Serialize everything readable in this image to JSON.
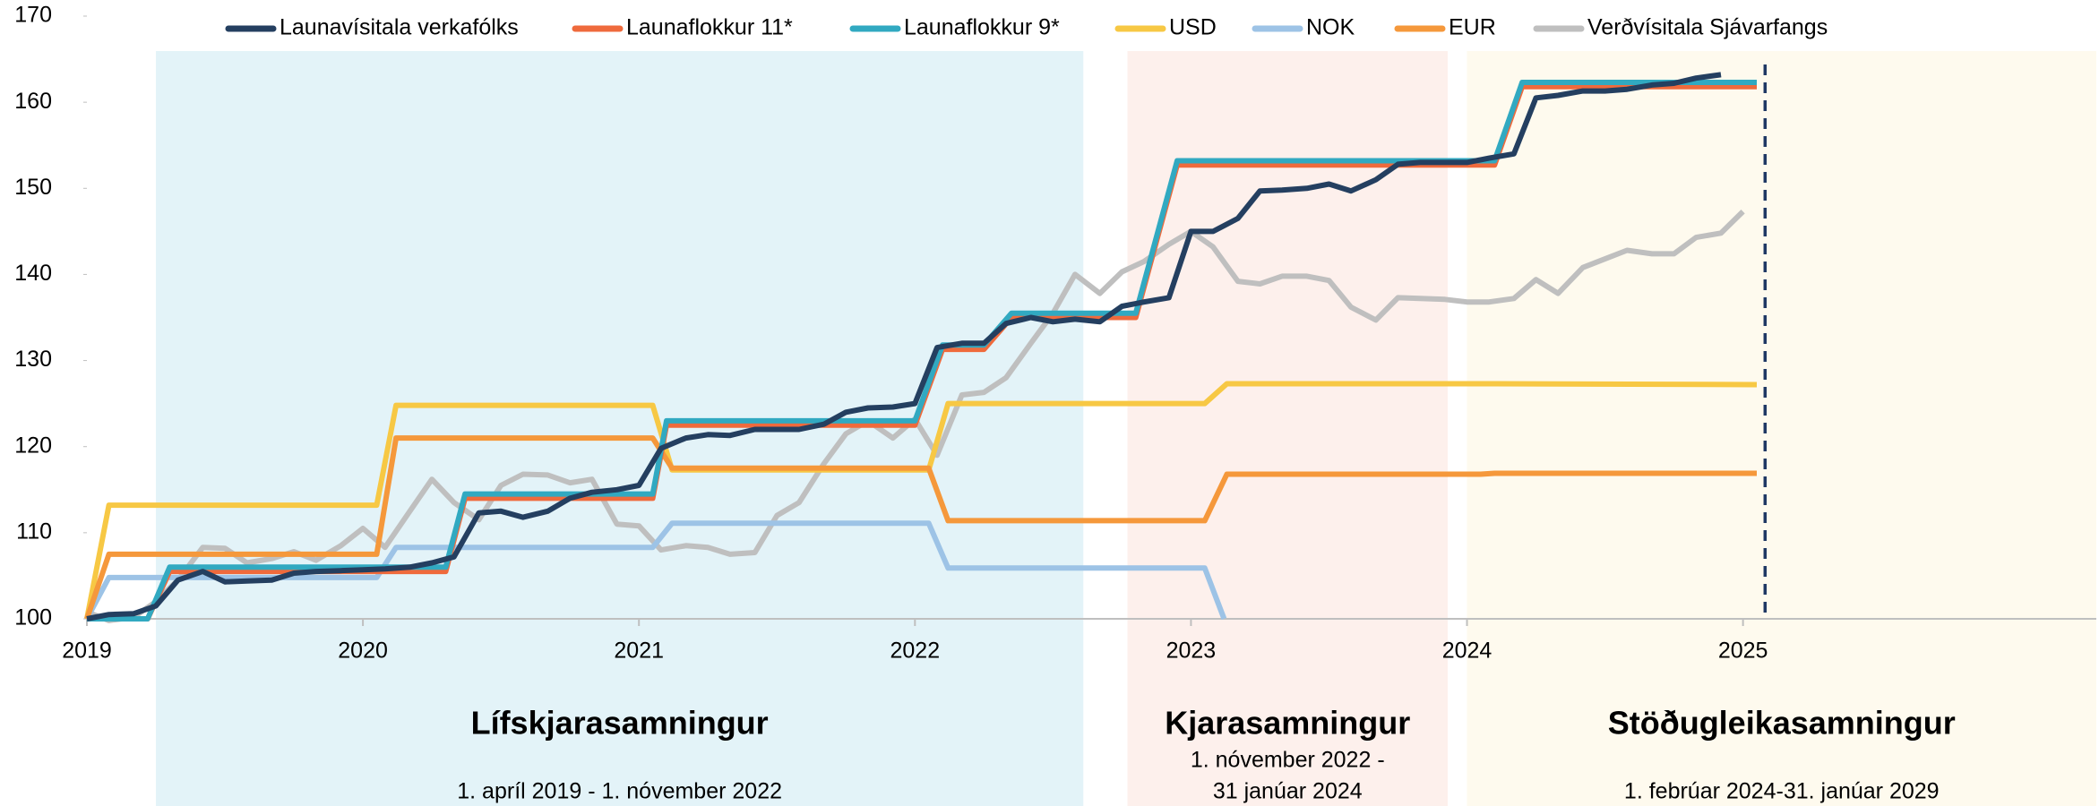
{
  "chart_data": {
    "type": "line",
    "xlim": [
      2019,
      2026.28
    ],
    "ylim": [
      100,
      170
    ],
    "xticks": [
      2019,
      2020,
      2021,
      2022,
      2023,
      2024,
      2025
    ],
    "yticks": [
      100,
      110,
      120,
      130,
      140,
      150,
      160,
      170
    ],
    "marker_line_x": 2025.08,
    "periods": [
      {
        "label": "Lífskjarasamningur",
        "dates": [
          "1. apríl 2019 - 1. nóvember 2022"
        ],
        "start": 2019.25,
        "end": 2022.61,
        "color": "#e3f3f8"
      },
      {
        "label": "Kjarasamningur",
        "dates": [
          "1. nóvember  2022 -",
          "31 janúar 2024"
        ],
        "start": 2022.77,
        "end": 2023.93,
        "color": "#fdf0ec"
      },
      {
        "label": "Stöðugleikasamningur",
        "dates": [
          "1. febrúar 2024-31. janúar 2029"
        ],
        "start": 2024.0,
        "end": 2026.28,
        "color": "#fefaee"
      }
    ],
    "series": [
      {
        "name": "Launavísitala verkafólks",
        "color": "#243f60",
        "x": [
          2019,
          2019.08,
          2019.17,
          2019.25,
          2019.33,
          2019.42,
          2019.5,
          2019.58,
          2019.67,
          2019.75,
          2019.83,
          2019.92,
          2020,
          2020.08,
          2020.17,
          2020.25,
          2020.33,
          2020.42,
          2020.5,
          2020.58,
          2020.67,
          2020.75,
          2020.83,
          2020.92,
          2021,
          2021.08,
          2021.17,
          2021.25,
          2021.33,
          2021.42,
          2021.5,
          2021.58,
          2021.67,
          2021.75,
          2021.83,
          2021.92,
          2022,
          2022.08,
          2022.17,
          2022.25,
          2022.33,
          2022.42,
          2022.5,
          2022.58,
          2022.67,
          2022.75,
          2022.83,
          2022.92,
          2023,
          2023.08,
          2023.17,
          2023.25,
          2023.33,
          2023.42,
          2023.5,
          2023.58,
          2023.67,
          2023.75,
          2023.83,
          2023.92,
          2024,
          2024.08,
          2024.17,
          2024.25,
          2024.33,
          2024.42,
          2024.5,
          2024.58,
          2024.67,
          2024.75,
          2024.83,
          2024.92
        ],
        "values": [
          100,
          100.5,
          100.6,
          101.5,
          104.5,
          105.5,
          104.3,
          104.4,
          104.5,
          105.3,
          105.5,
          105.6,
          105.7,
          105.8,
          106,
          106.5,
          107.2,
          112.3,
          112.5,
          111.8,
          112.5,
          114,
          114.7,
          115,
          115.5,
          119.8,
          121,
          121.4,
          121.3,
          122,
          122,
          122,
          122.6,
          124,
          124.5,
          124.6,
          125,
          131.5,
          132,
          132,
          134.3,
          135,
          134.5,
          134.8,
          134.5,
          136.3,
          136.8,
          137.3,
          145,
          145,
          146.5,
          149.7,
          149.8,
          150,
          150.5,
          149.7,
          151,
          152.8,
          153,
          153,
          153,
          153.5,
          154,
          160.5,
          160.8,
          161.3,
          161.3,
          161.5,
          162,
          162.2,
          162.8,
          163.2
        ]
      },
      {
        "name": "Launaflokkur 11*",
        "color": "#ef6a3c",
        "x": [
          2019,
          2019.22,
          2019.3,
          2020.3,
          2020.37,
          2021.05,
          2021.1,
          2022.0,
          2022.1,
          2022.25,
          2022.35,
          2022.8,
          2022.95,
          2024.1,
          2024.2,
          2025.05
        ],
        "values": [
          100,
          100,
          105.5,
          105.5,
          114,
          114,
          122.5,
          122.5,
          131.3,
          131.3,
          135,
          135,
          152.7,
          152.7,
          161.8,
          161.8
        ]
      },
      {
        "name": "Launaflokkur 9*",
        "color": "#31a9c1",
        "x": [
          2019,
          2019.22,
          2019.3,
          2020.3,
          2020.37,
          2021.05,
          2021.1,
          2022.0,
          2022.1,
          2022.25,
          2022.35,
          2022.8,
          2022.95,
          2024.1,
          2024.2,
          2025.05
        ],
        "values": [
          100,
          100,
          106,
          106,
          114.5,
          114.5,
          123,
          123,
          131.8,
          131.8,
          135.5,
          135.5,
          153.2,
          153.2,
          162.3,
          162.3
        ]
      },
      {
        "name": "USD",
        "color": "#f7c844",
        "x": [
          2019,
          2019.08,
          2020.05,
          2020.12,
          2021.05,
          2021.12,
          2022.05,
          2022.12,
          2023.05,
          2023.13,
          2024.1,
          2025.05
        ],
        "values": [
          100,
          113.2,
          113.2,
          124.8,
          124.8,
          117.3,
          117.3,
          125,
          125,
          127.3,
          127.3,
          127.2
        ]
      },
      {
        "name": "NOK",
        "color": "#9dc3e6",
        "x": [
          2019,
          2019.08,
          2020.05,
          2020.12,
          2021.05,
          2021.12,
          2022.05,
          2022.12,
          2023.05,
          2023.12
        ],
        "values": [
          100,
          104.8,
          104.8,
          108.3,
          108.3,
          111.1,
          111.1,
          105.9,
          105.9,
          100
        ]
      },
      {
        "name": "EUR",
        "color": "#f5983b",
        "x": [
          2019,
          2019.08,
          2020.05,
          2020.12,
          2021.05,
          2021.12,
          2022.05,
          2022.12,
          2023.05,
          2023.13,
          2024.05,
          2024.1,
          2025.05
        ],
        "values": [
          100,
          107.5,
          107.5,
          121,
          121,
          117.5,
          117.5,
          111.4,
          111.4,
          116.8,
          116.8,
          116.9,
          116.9
        ]
      },
      {
        "name": "Verðvísitala Sjávarfangs",
        "color": "#bfbfbf",
        "x": [
          2019,
          2019.08,
          2019.17,
          2019.25,
          2019.33,
          2019.42,
          2019.5,
          2019.58,
          2019.67,
          2019.75,
          2019.83,
          2019.92,
          2020,
          2020.08,
          2020.17,
          2020.25,
          2020.33,
          2020.42,
          2020.5,
          2020.58,
          2020.67,
          2020.75,
          2020.83,
          2020.92,
          2021,
          2021.08,
          2021.17,
          2021.25,
          2021.33,
          2021.42,
          2021.5,
          2021.58,
          2021.67,
          2021.75,
          2021.83,
          2021.92,
          2022,
          2022.08,
          2022.17,
          2022.25,
          2022.33,
          2022.42,
          2022.5,
          2022.58,
          2022.67,
          2022.75,
          2022.83,
          2022.92,
          2023,
          2023.08,
          2023.17,
          2023.25,
          2023.33,
          2023.42,
          2023.5,
          2023.58,
          2023.67,
          2023.75,
          2023.83,
          2023.92,
          2024,
          2024.08,
          2024.17,
          2024.25,
          2024.33,
          2024.42,
          2024.5,
          2024.58,
          2024.67,
          2024.75,
          2024.83,
          2024.92,
          2025
        ],
        "values": [
          100.8,
          99.8,
          100.2,
          102,
          104.5,
          108.3,
          108.2,
          106.5,
          107,
          107.8,
          106.8,
          108.5,
          110.5,
          108.3,
          112.5,
          116.2,
          113.5,
          111.5,
          115.5,
          116.8,
          116.7,
          115.8,
          116.2,
          111,
          110.8,
          108,
          108.5,
          108.3,
          107.5,
          107.7,
          112,
          113.5,
          118,
          121.5,
          123,
          121,
          123.2,
          119,
          126,
          126.3,
          128,
          132,
          135.5,
          140,
          137.8,
          140.3,
          141.5,
          143.5,
          145,
          143.2,
          139.2,
          138.9,
          139.8,
          139.8,
          139.3,
          136.2,
          134.7,
          137.3,
          137.2,
          137.1,
          136.8,
          136.8,
          137.2,
          139.4,
          137.8,
          140.8,
          141.8,
          142.8,
          142.4,
          142.4,
          144.3,
          144.8,
          147.3
        ]
      }
    ]
  }
}
